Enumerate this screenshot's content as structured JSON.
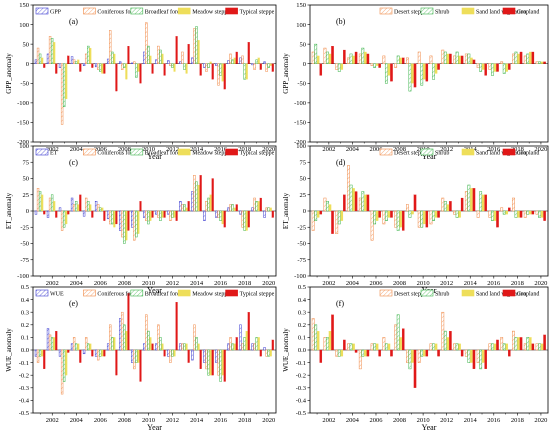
{
  "chart_data": [
    {
      "panel": "(a)",
      "type": "bar",
      "ylabel": "GPP_anomaly",
      "xlabel": "Year",
      "ylim": [
        -200,
        150
      ],
      "yticks": [
        150,
        100,
        50,
        0,
        -50,
        -100,
        -150,
        -200
      ],
      "xticks": [
        "2002",
        "2004",
        "2006",
        "2008",
        "2010",
        "2012",
        "2014",
        "2016",
        "2018",
        "2020"
      ],
      "x": [
        2001,
        2002,
        2003,
        2004,
        2005,
        2006,
        2007,
        2008,
        2009,
        2010,
        2011,
        2012,
        2013,
        2014,
        2015,
        2016,
        2017,
        2018,
        2019,
        2020
      ],
      "series": [
        {
          "name": "GPP",
          "style": "hatch",
          "color": "#3a3ad0",
          "values": [
            10,
            25,
            -10,
            18,
            -5,
            -8,
            12,
            5,
            2,
            30,
            10,
            8,
            5,
            15,
            -10,
            -5,
            8,
            15,
            -3,
            5
          ]
        },
        {
          "name": "Coniferous forest",
          "style": "hatch",
          "color": "#f08a48",
          "values": [
            40,
            70,
            -155,
            10,
            25,
            -15,
            85,
            -15,
            5,
            105,
            45,
            -5,
            30,
            90,
            -20,
            -55,
            25,
            20,
            -15,
            -20
          ]
        },
        {
          "name": "Broadleaf forest",
          "style": "hatch",
          "color": "#3cb44b",
          "values": [
            25,
            65,
            -110,
            5,
            45,
            -20,
            30,
            -10,
            -35,
            45,
            35,
            -10,
            -15,
            95,
            -10,
            -30,
            10,
            -40,
            10,
            -10
          ]
        },
        {
          "name": "Meadow steppe",
          "style": "solid",
          "color": "#eede5a",
          "values": [
            15,
            55,
            -90,
            10,
            40,
            -25,
            25,
            -40,
            -20,
            20,
            25,
            -20,
            -25,
            60,
            5,
            -45,
            15,
            -40,
            15,
            -5
          ]
        },
        {
          "name": "Typical steppe",
          "style": "solid",
          "color": "#e01818",
          "values": [
            -10,
            -25,
            20,
            -20,
            -10,
            -25,
            -70,
            45,
            -50,
            -25,
            -30,
            70,
            50,
            -30,
            -40,
            -65,
            30,
            55,
            -15,
            -20
          ]
        }
      ]
    },
    {
      "panel": "(b)",
      "type": "bar",
      "ylabel": "GPP_anomaly",
      "xlabel": "Year",
      "ylim": [
        -200,
        150
      ],
      "yticks": [
        150,
        100,
        50,
        0,
        -50,
        -100,
        -150,
        -200
      ],
      "xticks": [
        "2002",
        "2004",
        "2006",
        "2008",
        "2010",
        "2012",
        "2014",
        "2016",
        "2018",
        "2020"
      ],
      "x": [
        2001,
        2002,
        2003,
        2004,
        2005,
        2006,
        2007,
        2008,
        2009,
        2010,
        2011,
        2012,
        2013,
        2014,
        2015,
        2016,
        2017,
        2018,
        2019,
        2020
      ],
      "series": [
        {
          "name": "Desert steppe",
          "style": "hatch",
          "color": "#f08a48",
          "values": [
            30,
            40,
            -15,
            15,
            25,
            -5,
            20,
            -10,
            15,
            30,
            20,
            35,
            20,
            25,
            -10,
            -15,
            5,
            25,
            20,
            5
          ]
        },
        {
          "name": "Shrub",
          "style": "hatch",
          "color": "#3cb44b",
          "values": [
            50,
            30,
            -20,
            25,
            40,
            -10,
            -50,
            20,
            -70,
            -55,
            -40,
            30,
            30,
            25,
            -20,
            -30,
            -25,
            30,
            25,
            5
          ]
        },
        {
          "name": "Sand land vegetation",
          "style": "solid",
          "color": "#eede5a",
          "values": [
            20,
            25,
            -15,
            20,
            30,
            -5,
            -30,
            15,
            -50,
            -40,
            -25,
            25,
            20,
            15,
            -15,
            -20,
            -20,
            25,
            30,
            5
          ]
        },
        {
          "name": "Cropland",
          "style": "solid",
          "color": "#e01818",
          "values": [
            -30,
            45,
            35,
            30,
            25,
            -10,
            -45,
            15,
            -60,
            -45,
            -15,
            25,
            20,
            10,
            -30,
            -20,
            -15,
            30,
            30,
            5
          ]
        }
      ]
    },
    {
      "panel": "(c)",
      "type": "bar",
      "ylabel": "ET_anomaly",
      "xlabel": "Year",
      "ylim": [
        -100,
        100
      ],
      "yticks": [
        100,
        75,
        50,
        25,
        0,
        -25,
        -50,
        -75,
        -100
      ],
      "xticks": [
        "2002",
        "2004",
        "2006",
        "2008",
        "2010",
        "2012",
        "2014",
        "2016",
        "2018",
        "2020"
      ],
      "x": [
        2001,
        2002,
        2003,
        2004,
        2005,
        2006,
        2007,
        2008,
        2009,
        2010,
        2011,
        2012,
        2013,
        2014,
        2015,
        2016,
        2017,
        2018,
        2019,
        2020
      ],
      "series": [
        {
          "name": "ET",
          "style": "hatch",
          "color": "#3a3ad0",
          "values": [
            -5,
            -10,
            5,
            20,
            -8,
            15,
            -12,
            -30,
            -25,
            -10,
            -5,
            -5,
            15,
            30,
            -15,
            -10,
            5,
            -5,
            5,
            -10
          ]
        },
        {
          "name": "Coniferous forest",
          "style": "hatch",
          "color": "#f08a48",
          "values": [
            35,
            20,
            -30,
            10,
            20,
            10,
            -20,
            -40,
            -45,
            -15,
            -10,
            -15,
            10,
            55,
            15,
            -10,
            10,
            -25,
            20,
            5
          ]
        },
        {
          "name": "Broadleaf forest",
          "style": "hatch",
          "color": "#3cb44b",
          "values": [
            30,
            25,
            -25,
            15,
            15,
            5,
            -20,
            -50,
            -40,
            -20,
            -15,
            -10,
            10,
            45,
            20,
            -15,
            10,
            -30,
            15,
            5
          ]
        },
        {
          "name": "Meadow steppe",
          "style": "solid",
          "color": "#eede5a",
          "values": [
            25,
            15,
            -20,
            10,
            10,
            5,
            -25,
            -45,
            -35,
            -15,
            -10,
            -10,
            5,
            40,
            25,
            -20,
            5,
            -30,
            15,
            5
          ]
        },
        {
          "name": "Typical steppe",
          "style": "solid",
          "color": "#e01818",
          "values": [
            -5,
            -10,
            -5,
            25,
            -10,
            -15,
            -20,
            -30,
            15,
            -10,
            -10,
            -15,
            15,
            55,
            50,
            -25,
            10,
            -25,
            20,
            -10
          ]
        }
      ]
    },
    {
      "panel": "(d)",
      "type": "bar",
      "ylabel": "ET_anomaly",
      "xlabel": "Year",
      "ylim": [
        -100,
        100
      ],
      "yticks": [
        100,
        75,
        50,
        25,
        0,
        -25,
        -50,
        -75,
        -100
      ],
      "xticks": [
        "2002",
        "2004",
        "2006",
        "2008",
        "2010",
        "2012",
        "2014",
        "2016",
        "2018",
        "2020"
      ],
      "x": [
        2001,
        2002,
        2003,
        2004,
        2005,
        2006,
        2007,
        2008,
        2009,
        2010,
        2011,
        2012,
        2013,
        2014,
        2015,
        2016,
        2017,
        2018,
        2019,
        2020
      ],
      "series": [
        {
          "name": "Desert steppe",
          "style": "hatch",
          "color": "#f08a48",
          "values": [
            -30,
            20,
            -35,
            70,
            20,
            -45,
            -20,
            -25,
            10,
            -25,
            -20,
            20,
            -5,
            30,
            -10,
            -10,
            5,
            20,
            -10,
            -5
          ]
        },
        {
          "name": "Shrub",
          "style": "hatch",
          "color": "#3cb44b",
          "values": [
            -15,
            15,
            -20,
            40,
            30,
            -20,
            -15,
            -30,
            -10,
            -25,
            -15,
            15,
            -10,
            40,
            30,
            -15,
            -5,
            -10,
            -5,
            -10
          ]
        },
        {
          "name": "Sand land vegetation",
          "style": "solid",
          "color": "#eede5a",
          "values": [
            -10,
            10,
            -15,
            35,
            25,
            -15,
            -10,
            -25,
            -5,
            -20,
            -10,
            10,
            -10,
            35,
            25,
            -15,
            -5,
            -10,
            -5,
            -10
          ]
        },
        {
          "name": "Cropland",
          "style": "solid",
          "color": "#e01818",
          "values": [
            -5,
            -35,
            25,
            30,
            25,
            -10,
            -10,
            -30,
            25,
            -25,
            -10,
            15,
            20,
            35,
            25,
            -25,
            5,
            -10,
            -5,
            -15
          ]
        }
      ]
    },
    {
      "panel": "(e)",
      "type": "bar",
      "ylabel": "WUE_anomaly",
      "xlabel": "Year",
      "ylim": [
        -0.5,
        0.5
      ],
      "yticks": [
        0.5,
        0.4,
        0.3,
        0.2,
        0.1,
        0.0,
        -0.1,
        -0.2,
        -0.3,
        -0.4,
        -0.5
      ],
      "xticks": [
        "2002",
        "2004",
        "2006",
        "2008",
        "2010",
        "2012",
        "2014",
        "2016",
        "2018",
        "2020"
      ],
      "x": [
        2001,
        2002,
        2003,
        2004,
        2005,
        2006,
        2007,
        2008,
        2009,
        2010,
        2011,
        2012,
        2013,
        2014,
        2015,
        2016,
        2017,
        2018,
        2019,
        2020
      ],
      "series": [
        {
          "name": "WUE",
          "style": "hatch",
          "color": "#3a3ad0",
          "values": [
            -0.05,
            0.17,
            -0.05,
            0.05,
            -0.03,
            -0.05,
            0.05,
            0.25,
            -0.1,
            0.05,
            0.05,
            -0.05,
            0.05,
            -0.08,
            -0.1,
            -0.1,
            0.05,
            0.2,
            0.05,
            0.02
          ]
        },
        {
          "name": "Coniferous forest",
          "style": "hatch",
          "color": "#f08a48",
          "values": [
            -0.1,
            0.12,
            -0.35,
            0.1,
            0.1,
            -0.08,
            0.2,
            0.3,
            -0.15,
            0.28,
            0.2,
            -0.1,
            0.05,
            0.2,
            -0.15,
            -0.2,
            0.1,
            0.05,
            0.05,
            -0.05
          ]
        },
        {
          "name": "Broadleaf forest",
          "style": "hatch",
          "color": "#3cb44b",
          "values": [
            -0.05,
            0.1,
            -0.25,
            0.05,
            0.05,
            -0.05,
            0.1,
            0.2,
            -0.1,
            0.15,
            0.1,
            -0.05,
            0.05,
            0.1,
            -0.2,
            -0.25,
            0.05,
            0.1,
            0.1,
            -0.05
          ]
        },
        {
          "name": "Meadow steppe",
          "style": "solid",
          "color": "#eede5a",
          "values": [
            -0.05,
            0.1,
            -0.2,
            0.05,
            0.05,
            -0.05,
            0.1,
            0.15,
            -0.1,
            0.1,
            0.05,
            -0.05,
            0.05,
            0.05,
            -0.2,
            -0.2,
            0.05,
            0.15,
            0.1,
            -0.05
          ]
        },
        {
          "name": "Typical steppe",
          "style": "solid",
          "color": "#e01818",
          "values": [
            -0.15,
            0.15,
            -0.02,
            -0.1,
            -0.05,
            -0.05,
            -0.2,
            0.45,
            -0.25,
            0.05,
            -0.05,
            0.38,
            -0.1,
            -0.15,
            -0.2,
            -0.25,
            0.1,
            0.3,
            -0.05,
            0.08
          ]
        }
      ]
    },
    {
      "panel": "(f)",
      "type": "bar",
      "ylabel": "WUE_anomaly",
      "xlabel": "Year",
      "ylim": [
        -0.5,
        0.5
      ],
      "yticks": [
        0.5,
        0.4,
        0.3,
        0.2,
        0.1,
        0.0,
        -0.1,
        -0.2,
        -0.3,
        -0.4,
        -0.5
      ],
      "xticks": [
        "2002",
        "2004",
        "2006",
        "2008",
        "2010",
        "2012",
        "2014",
        "2016",
        "2018",
        "2020"
      ],
      "x": [
        2001,
        2002,
        2003,
        2004,
        2005,
        2006,
        2007,
        2008,
        2009,
        2010,
        2011,
        2012,
        2013,
        2014,
        2015,
        2016,
        2017,
        2018,
        2019,
        2020
      ],
      "series": [
        {
          "name": "Desert steppe",
          "style": "hatch",
          "color": "#f08a48",
          "values": [
            0.25,
            0.1,
            -0.05,
            0.05,
            -0.15,
            0.05,
            0.1,
            0.2,
            -0.1,
            -0.1,
            0.05,
            0.3,
            0.05,
            -0.05,
            -0.1,
            0.05,
            0.1,
            0.15,
            0.05,
            0.05
          ]
        },
        {
          "name": "Shrub",
          "style": "hatch",
          "color": "#3cb44b",
          "values": [
            0.2,
            0.1,
            -0.05,
            0.05,
            -0.05,
            0.05,
            0.05,
            0.28,
            -0.15,
            -0.05,
            0.05,
            0.15,
            0.05,
            -0.1,
            -0.15,
            0.05,
            0.05,
            0.1,
            0.1,
            0.05
          ]
        },
        {
          "name": "Sand land vegetation",
          "style": "solid",
          "color": "#eede5a",
          "values": [
            0.15,
            0.15,
            -0.05,
            0.05,
            -0.05,
            0.05,
            0.05,
            0.1,
            -0.1,
            -0.05,
            0.05,
            0.1,
            0.05,
            -0.1,
            -0.1,
            0.05,
            0.05,
            0.1,
            0.1,
            0.05
          ]
        },
        {
          "name": "Cropland",
          "style": "solid",
          "color": "#e01818",
          "values": [
            -0.1,
            0.28,
            0.08,
            -0.02,
            -0.05,
            -0.05,
            -0.05,
            0.17,
            -0.3,
            -0.05,
            -0.05,
            0.15,
            -0.05,
            -0.15,
            -0.15,
            0.08,
            -0.05,
            0.1,
            0.05,
            0.12
          ]
        }
      ]
    }
  ]
}
